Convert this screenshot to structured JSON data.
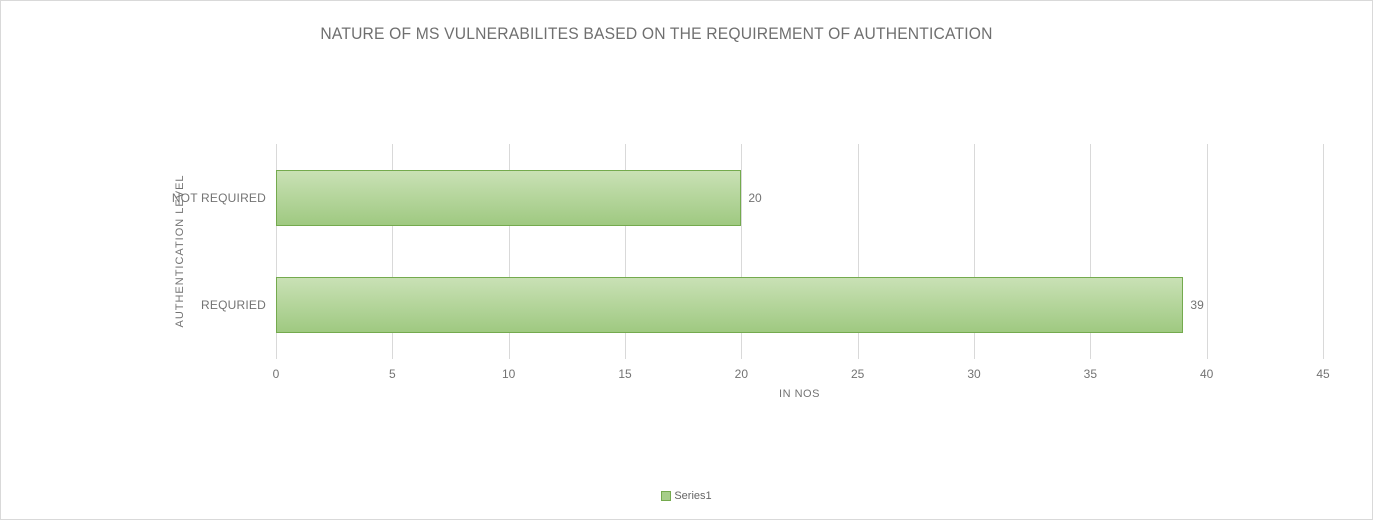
{
  "window": {
    "background": "#ffffff",
    "frame_border_color": "#d9d9d9"
  },
  "chart_data": {
    "type": "bar",
    "orientation": "horizontal",
    "title": "NATURE OF MS VULNERABILITES BASED ON THE REQUIREMENT OF AUTHENTICATION",
    "categories": [
      "NOT REQUIRED",
      "REQURIED"
    ],
    "values": [
      20,
      39
    ],
    "value_labels": [
      "20",
      "39"
    ],
    "xlabel": "IN NOS",
    "ylabel": "AUTHENTICATION LEVEL",
    "xlim": [
      0,
      45
    ],
    "xticks": [
      0,
      5,
      10,
      15,
      20,
      25,
      30,
      35,
      40,
      45
    ],
    "grid": true,
    "legend": {
      "position": "bottom",
      "entries": [
        "Series1"
      ]
    },
    "colors": {
      "bar_fill_top": "#c9e1b5",
      "bar_fill_bottom": "#9fc981",
      "bar_border": "#74aa4e",
      "gridline": "#d9d9d9",
      "title_text": "#6f6f6f",
      "axis_text": "#737373",
      "legend_text": "#666666"
    }
  }
}
